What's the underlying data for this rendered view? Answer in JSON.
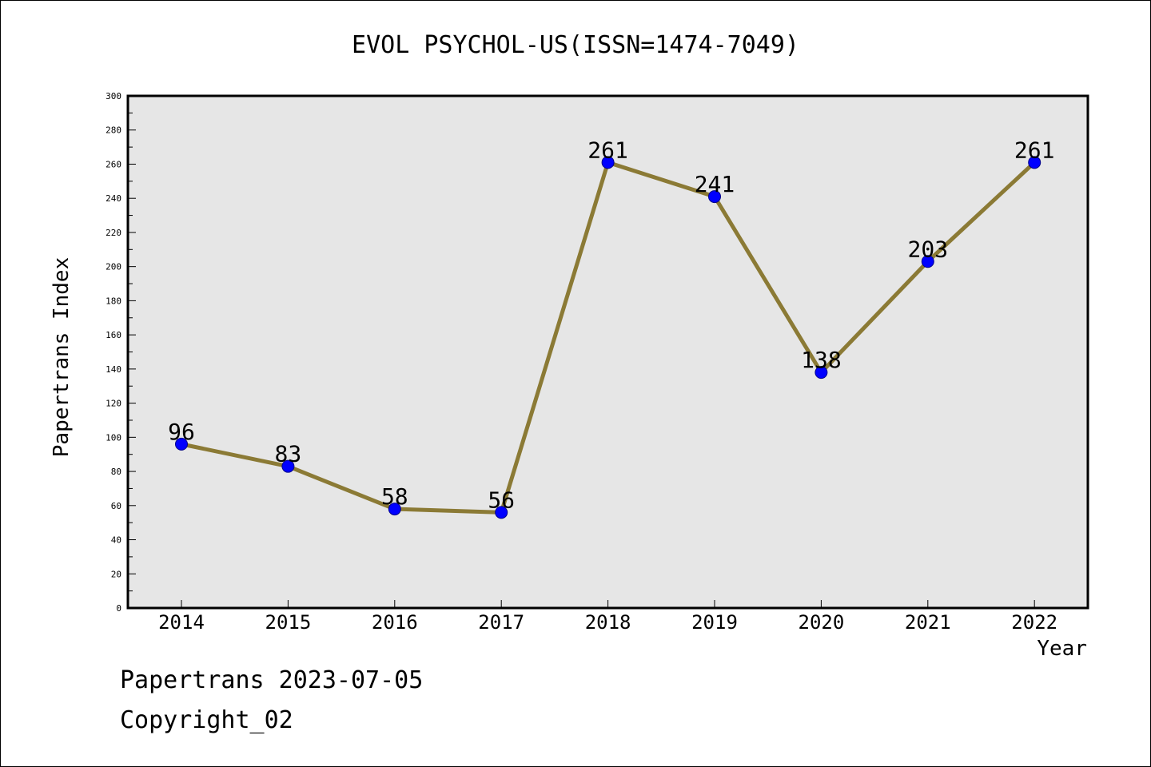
{
  "chart_data": {
    "type": "line",
    "title": "EVOL PSYCHOL-US(ISSN=1474-7049)",
    "xlabel": "Year",
    "ylabel": "Papertrans Index",
    "categories": [
      "2014",
      "2015",
      "2016",
      "2017",
      "2018",
      "2019",
      "2020",
      "2021",
      "2022"
    ],
    "series": [
      {
        "values": [
          96,
          83,
          58,
          56,
          261,
          241,
          138,
          203,
          261
        ]
      }
    ],
    "data_labels": [
      "96",
      "83",
      "58",
      "56",
      "261",
      "241",
      "138",
      "203",
      "261"
    ],
    "ylim": [
      0,
      300
    ],
    "yticks": [
      "0",
      "20",
      "40",
      "60",
      "80",
      "100",
      "120",
      "140",
      "160",
      "180",
      "200",
      "220",
      "240",
      "260",
      "280",
      "300"
    ],
    "line_color": "#8B7A35",
    "marker_color": "#0000FF",
    "plot_background": "#E6E6E6",
    "grid": false,
    "legend": "none"
  },
  "footer": {
    "date_line": "Papertrans 2023-07-05",
    "copyright_line": "Copyright_02"
  }
}
